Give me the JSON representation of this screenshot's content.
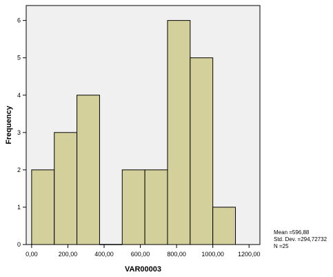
{
  "chart_data": {
    "type": "bar",
    "subtype": "histogram",
    "xlabel": "VAR00003",
    "ylabel": "Frequency",
    "bin_width": 125,
    "bin_starts": [
      0,
      125,
      250,
      375,
      500,
      625,
      750,
      875,
      1000
    ],
    "values": [
      2,
      3,
      4,
      0,
      2,
      2,
      6,
      5,
      1
    ],
    "xlim": [
      -30,
      1260
    ],
    "ylim": [
      0,
      6.4
    ],
    "x_ticks": [
      0,
      200,
      400,
      600,
      800,
      1000,
      1200
    ],
    "x_tick_labels": [
      "0,00",
      "200,00",
      "400,00",
      "600,00",
      "800,00",
      "1000,00",
      "1200,00"
    ],
    "y_ticks": [
      0,
      1,
      2,
      3,
      4,
      5,
      6
    ],
    "y_tick_labels": [
      "0",
      "1",
      "2",
      "3",
      "4",
      "5",
      "6"
    ],
    "grid": false,
    "plot_background": "#f0f0f0",
    "bar_color": "#d4d09c",
    "bar_edge_color": "#000000"
  },
  "stats": {
    "mean": "Mean =596,88",
    "std": "Std. Dev. =294,72732",
    "n": "N =25"
  }
}
